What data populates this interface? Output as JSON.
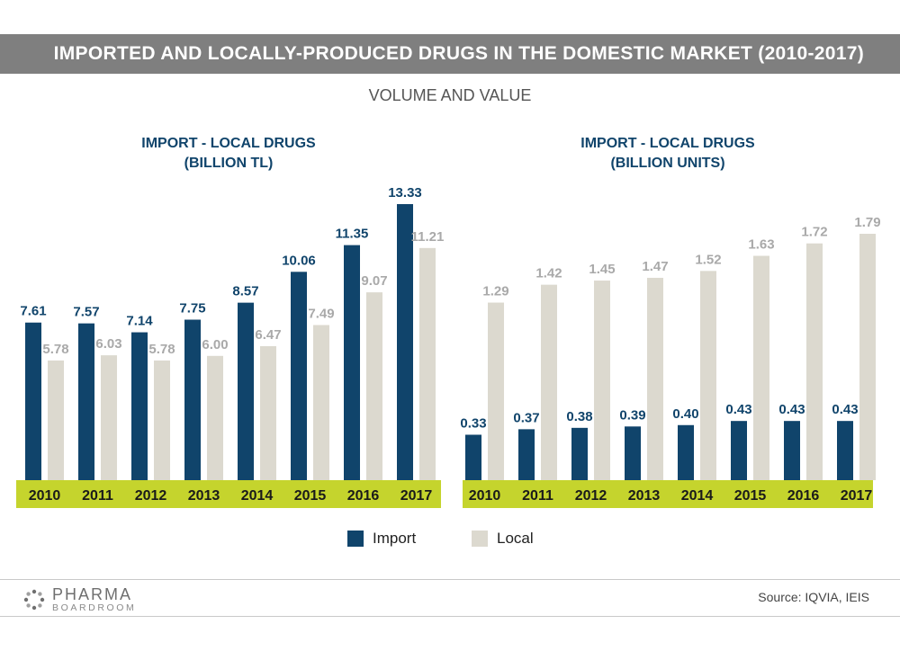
{
  "header": {
    "title": "IMPORTED AND LOCALLY-PRODUCED DRUGS IN THE DOMESTIC MARKET (2010-2017)",
    "subtitle": "VOLUME AND VALUE"
  },
  "colors": {
    "import": "#10446b",
    "local": "#dcd9cf",
    "axis_band": "#c5d42d",
    "banner": "#7f7f7f"
  },
  "chart_data": [
    {
      "type": "bar",
      "title": "IMPORT - LOCAL DRUGS",
      "subtitle": "(BILLION TL)",
      "categories": [
        "2010",
        "2011",
        "2012",
        "2013",
        "2014",
        "2015",
        "2016",
        "2017"
      ],
      "series": [
        {
          "name": "Import",
          "values": [
            7.61,
            7.57,
            7.14,
            7.75,
            8.57,
            10.06,
            11.35,
            13.33
          ],
          "labels": [
            "7.61",
            "7.57",
            "7.14",
            "7.75",
            "8.57",
            "10.06",
            "11.35",
            "13.33"
          ]
        },
        {
          "name": "Local",
          "values": [
            5.78,
            6.03,
            5.78,
            6.0,
            6.47,
            7.49,
            9.07,
            11.21
          ],
          "labels": [
            "5.78",
            "6.03",
            "5.78",
            "6.00",
            "6.47",
            "7.49",
            "9.07",
            "11.21"
          ]
        }
      ],
      "ylim": [
        0,
        13.33
      ]
    },
    {
      "type": "bar",
      "title": "IMPORT - LOCAL DRUGS",
      "subtitle": "(BILLION UNITS)",
      "categories": [
        "2010",
        "2011",
        "2012",
        "2013",
        "2014",
        "2015",
        "2016",
        "2017"
      ],
      "series": [
        {
          "name": "Import",
          "values": [
            0.33,
            0.37,
            0.38,
            0.39,
            0.4,
            0.43,
            0.43,
            0.43
          ],
          "labels": [
            "0.33",
            "0.37",
            "0.38",
            "0.39",
            "0.40",
            "0.43",
            "0.43",
            "0.43"
          ]
        },
        {
          "name": "Local",
          "values": [
            1.29,
            1.42,
            1.45,
            1.47,
            1.52,
            1.63,
            1.72,
            1.79
          ],
          "labels": [
            "1.29",
            "1.42",
            "1.45",
            "1.47",
            "1.52",
            "1.63",
            "1.72",
            "1.79"
          ]
        }
      ],
      "ylim": [
        0,
        1.79
      ]
    }
  ],
  "legend": {
    "import_label": "Import",
    "local_label": "Local"
  },
  "footer": {
    "logo_line1": "PHARMA",
    "logo_line2": "BOARDROOM",
    "source": "Source:  IQVIA, IEIS"
  }
}
